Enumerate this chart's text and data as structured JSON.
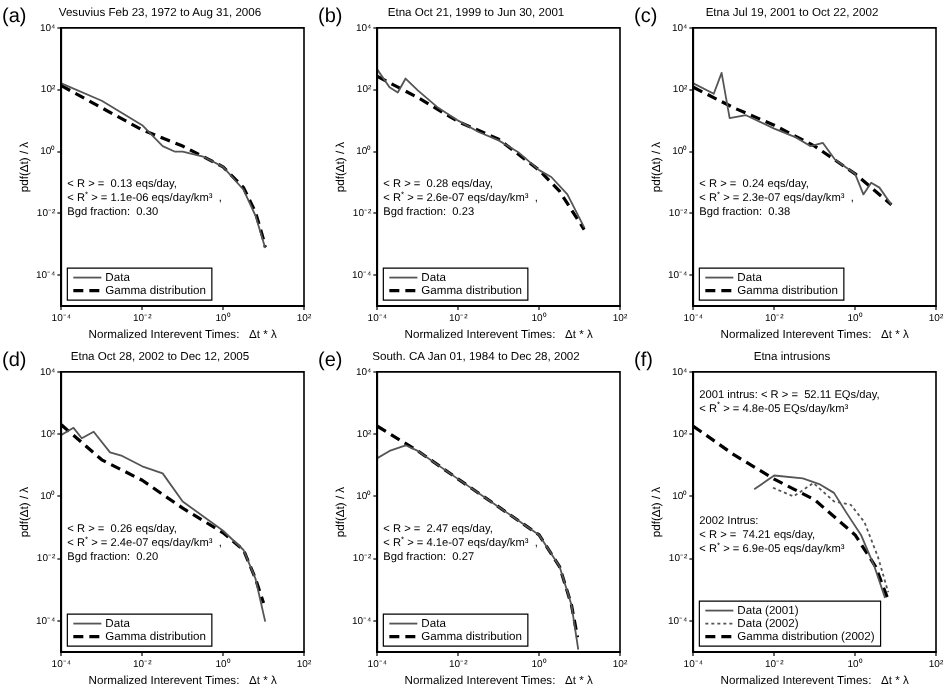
{
  "chart_data": [
    {
      "type": "line",
      "title": "Vesuvius Feb 23, 1972 to Aug 31, 2006",
      "xlabel": "Normalized Interevent Times:   Δt * λ",
      "ylabel": "pdf(Δt) / λ",
      "log": "xy",
      "legend": "bottom left",
      "xlim": [
        0.0001,
        100
      ],
      "xticks": [
        {
          "value": 0.0001,
          "label": "10⁻⁴"
        },
        {
          "value": 0.01,
          "label": "10⁻²"
        },
        {
          "value": 1,
          "label": "10⁰"
        },
        {
          "value": 100,
          "label": "10²"
        }
      ],
      "ylim": [
        1e-05,
        10000
      ],
      "yticks": [
        {
          "value": 0.0001,
          "label": "10⁻⁴"
        },
        {
          "value": 0.01,
          "label": "10⁻²"
        },
        {
          "value": 1,
          "label": "10⁰"
        },
        {
          "value": 100,
          "label": "10²"
        },
        {
          "value": 10000,
          "label": "10⁴"
        }
      ],
      "annotations": [
        "(a)",
        "< R > =  0.13 eqs/day,\n< R$^{*}$ > = 1.1e-06 eqs/day/km³  ,\nBgd fraction:  0.30"
      ],
      "series": [
        {
          "name": "Data",
          "color": "#555555",
          "line_style": "solid",
          "x": [
            0.0001,
            0.001,
            0.01,
            0.032,
            0.063,
            0.1,
            0.32,
            1,
            3.2,
            6.3,
            11
          ],
          "values": [
            160,
            44,
            7.1,
            1.5,
            1.0,
            1.0,
            0.69,
            0.32,
            0.058,
            0.0085,
            0.00076
          ]
        },
        {
          "name": "Gamma distribution",
          "color": "#000000",
          "line_style": "dashed",
          "x": [
            0.0001,
            0.001,
            0.01,
            0.1,
            1,
            3.2,
            6.3,
            10,
            11
          ],
          "values": [
            135,
            26,
            5,
            1.5,
            0.32,
            0.068,
            0.011,
            0.0014,
            0.0008
          ]
        }
      ]
    },
    {
      "type": "line",
      "title": "Etna Oct 21, 1999 to Jun 30, 2001",
      "xlabel": "Normalized Interevent Times:   Δt * λ",
      "ylabel": "pdf(Δt) / λ",
      "log": "xy",
      "legend": "bottom left",
      "xlim": [
        0.0001,
        100
      ],
      "xticks": [
        {
          "value": 0.0001,
          "label": "10⁻⁴"
        },
        {
          "value": 0.01,
          "label": "10⁻²"
        },
        {
          "value": 1,
          "label": "10⁰"
        },
        {
          "value": 100,
          "label": "10²"
        }
      ],
      "ylim": [
        1e-05,
        10000
      ],
      "yticks": [
        {
          "value": 0.0001,
          "label": "10⁻⁴"
        },
        {
          "value": 0.01,
          "label": "10⁻²"
        },
        {
          "value": 1,
          "label": "10⁰"
        },
        {
          "value": 100,
          "label": "10²"
        },
        {
          "value": 10000,
          "label": "10⁴"
        }
      ],
      "annotations": [
        "(b)",
        "< R > =  0.28 eqs/day,\n< R$^{*}$ > = 2.6e-07 eqs/day/km³  ,\nBgd fraction:  0.23"
      ],
      "series": [
        {
          "name": "Data",
          "color": "#555555",
          "line_style": "solid",
          "x": [
            0.0001,
            0.0002,
            0.00032,
            0.0005,
            0.001,
            0.0032,
            0.01,
            0.032,
            0.1,
            0.32,
            1,
            2,
            5,
            13
          ],
          "values": [
            450,
            120,
            81,
            230,
            95,
            26,
            10,
            4.3,
            2.3,
            0.91,
            0.25,
            0.15,
            0.041,
            0.0035
          ]
        },
        {
          "name": "Gamma distribution",
          "color": "#000000",
          "line_style": "dashed",
          "x": [
            0.0001,
            0.001,
            0.01,
            0.1,
            1,
            3.2,
            10,
            13
          ],
          "values": [
            270,
            56,
            9.3,
            2.5,
            0.25,
            0.052,
            0.0051,
            0.003
          ]
        }
      ]
    },
    {
      "type": "line",
      "title": "Etna Jul 19, 2001 to Oct 22, 2002",
      "xlabel": "Normalized Interevent Times:   Δt * λ",
      "ylabel": "pdf(Δt) / λ",
      "log": "xy",
      "legend": "bottom left",
      "xlim": [
        0.0001,
        100
      ],
      "xticks": [
        {
          "value": 0.0001,
          "label": "10⁻⁴"
        },
        {
          "value": 0.01,
          "label": "10⁻²"
        },
        {
          "value": 1,
          "label": "10⁰"
        },
        {
          "value": 100,
          "label": "10²"
        }
      ],
      "ylim": [
        1e-05,
        10000
      ],
      "yticks": [
        {
          "value": 0.0001,
          "label": "10⁻⁴"
        },
        {
          "value": 0.01,
          "label": "10⁻²"
        },
        {
          "value": 1,
          "label": "10⁰"
        },
        {
          "value": 100,
          "label": "10²"
        },
        {
          "value": 10000,
          "label": "10⁴"
        }
      ],
      "annotations": [
        "(c)",
        "< R > =  0.24 eqs/day,\n< R$^{*}$ > = 2.3e-07 eqs/day/km³  ,\nBgd fraction:  0.38"
      ],
      "series": [
        {
          "name": "Data",
          "color": "#555555",
          "line_style": "solid",
          "x": [
            0.0001,
            0.00032,
            0.0005,
            0.00079,
            0.002,
            0.01,
            0.032,
            0.079,
            0.16,
            0.32,
            1,
            1.6,
            2.5,
            4,
            7.9
          ],
          "values": [
            160,
            74,
            350,
            12,
            15,
            5.5,
            3.0,
            1.5,
            1.9,
            0.54,
            0.19,
            0.041,
            0.098,
            0.068,
            0.019
          ]
        },
        {
          "name": "Gamma distribution",
          "color": "#000000",
          "line_style": "dashed",
          "x": [
            0.0001,
            0.001,
            0.01,
            0.1,
            1,
            3.2,
            7.9
          ],
          "values": [
            120,
            26,
            7.1,
            1.5,
            0.19,
            0.052,
            0.019
          ]
        }
      ]
    },
    {
      "type": "line",
      "title": "Etna Oct 28, 2002 to Dec 12, 2005",
      "xlabel": "Normalized Interevent Times:   Δt * λ",
      "ylabel": "pdf(Δt) / λ",
      "log": "xy",
      "legend": "bottom left",
      "xlim": [
        0.0001,
        100
      ],
      "xticks": [
        {
          "value": 0.0001,
          "label": "10⁻⁴"
        },
        {
          "value": 0.01,
          "label": "10⁻²"
        },
        {
          "value": 1,
          "label": "10⁰"
        },
        {
          "value": 100,
          "label": "10²"
        }
      ],
      "ylim": [
        1e-05,
        10000
      ],
      "yticks": [
        {
          "value": 0.0001,
          "label": "10⁻⁴"
        },
        {
          "value": 0.01,
          "label": "10⁻²"
        },
        {
          "value": 1,
          "label": "10⁰"
        },
        {
          "value": 100,
          "label": "10²"
        },
        {
          "value": 10000,
          "label": "10⁴"
        }
      ],
      "annotations": [
        "(d)",
        "< R > =  0.26 eqs/day,\n< R$^{*}$ > = 2.4e-07 eqs/day/km³  ,\nBgd fraction:  0.20"
      ],
      "series": [
        {
          "name": "Data",
          "color": "#555555",
          "line_style": "solid",
          "x": [
            0.0001,
            0.0002,
            0.00032,
            0.00063,
            0.0016,
            0.0032,
            0.01,
            0.032,
            0.1,
            1,
            3.2,
            6.3,
            11
          ],
          "values": [
            95,
            160,
            74,
            120,
            26,
            20,
            9.3,
            5.5,
            0.69,
            0.079,
            0.019,
            0.0023,
            9.5e-05
          ]
        },
        {
          "name": "Gamma distribution",
          "color": "#000000",
          "line_style": "dashed",
          "x": [
            0.0001,
            0.001,
            0.01,
            0.1,
            1,
            3.2,
            6.3,
            10
          ],
          "values": [
            200,
            15,
            3.3,
            0.42,
            0.068,
            0.019,
            0.0023,
            0.00038
          ]
        }
      ]
    },
    {
      "type": "line",
      "title": "South. CA Jan 01, 1984 to Dec 28, 2002",
      "xlabel": "Normalized Interevent Times:   Δt * λ",
      "ylabel": "pdf(Δt) / λ",
      "log": "xy",
      "legend": "bottom left",
      "xlim": [
        0.0001,
        100
      ],
      "xticks": [
        {
          "value": 0.0001,
          "label": "10⁻⁴"
        },
        {
          "value": 0.01,
          "label": "10⁻²"
        },
        {
          "value": 1,
          "label": "10⁰"
        },
        {
          "value": 100,
          "label": "10²"
        }
      ],
      "ylim": [
        1e-05,
        10000
      ],
      "yticks": [
        {
          "value": 0.0001,
          "label": "10⁻⁴"
        },
        {
          "value": 0.01,
          "label": "10⁻²"
        },
        {
          "value": 1,
          "label": "10⁰"
        },
        {
          "value": 100,
          "label": "10²"
        },
        {
          "value": 10000,
          "label": "10⁴"
        }
      ],
      "annotations": [
        "(e)",
        "< R > =  2.47 eqs/day,\n< R$^{*}$ > = 4.1e-07 eqs/day/km³  ,\nBgd fraction:  0.27"
      ],
      "series": [
        {
          "name": "Data",
          "color": "#555555",
          "line_style": "solid",
          "x": [
            0.0001,
            0.0002,
            0.0005,
            0.001,
            0.01,
            0.1,
            1,
            3.2,
            6.3,
            9.3
          ],
          "values": [
            17,
            29,
            44,
            29,
            3.6,
            0.46,
            0.058,
            0.0056,
            0.00033,
            1.2e-05
          ]
        },
        {
          "name": "Gamma distribution",
          "color": "#000000",
          "line_style": "dashed",
          "x": [
            0.0001,
            0.001,
            0.01,
            0.1,
            1,
            3.2,
            6.3,
            8.9
          ],
          "values": [
            180,
            29,
            3.6,
            0.46,
            0.058,
            0.0056,
            0.00033,
            3e-05
          ]
        }
      ]
    },
    {
      "type": "line",
      "title": "Etna intrusions",
      "xlabel": "Normalized Interevent Times:   Δt * λ",
      "ylabel": "pdf(Δt) / λ",
      "log": "xy",
      "legend": "bottom left",
      "xlim": [
        0.0001,
        100
      ],
      "xticks": [
        {
          "value": 0.0001,
          "label": "10⁻⁴"
        },
        {
          "value": 0.01,
          "label": "10⁻²"
        },
        {
          "value": 1,
          "label": "10⁰"
        },
        {
          "value": 100,
          "label": "10²"
        }
      ],
      "ylim": [
        1e-05,
        10000
      ],
      "yticks": [
        {
          "value": 0.0001,
          "label": "10⁻⁴"
        },
        {
          "value": 0.01,
          "label": "10⁻²"
        },
        {
          "value": 1,
          "label": "10⁰"
        },
        {
          "value": 100,
          "label": "10²"
        },
        {
          "value": 10000,
          "label": "10⁴"
        }
      ],
      "annotations": [
        "(f)",
        "2001 intrus: < R > =  52.11 EQs/day,\n< R$^{*}$ > = 4.8e-05 EQs/day/km³",
        "2002 Intrus:\n< R > =  74.21 eqs/day,\n< R$^{*}$ > = 6.9e-05 eqs/day/km³"
      ],
      "series": [
        {
          "name": "Data (2001)",
          "color": "#555555",
          "line_style": "solid",
          "x": [
            0.0032,
            0.01,
            0.051,
            0.13,
            0.3,
            0.63,
            1.4,
            3.0,
            5.5
          ],
          "values": [
            1.7,
            4.7,
            3.8,
            2.5,
            1.3,
            0.28,
            0.058,
            0.0056,
            0.00055
          ]
        },
        {
          "name": "Data (2002)",
          "color": "#555555",
          "line_style": "dotted",
          "x": [
            0.0093,
            0.03,
            0.093,
            0.3,
            0.78,
            1.7,
            3.7,
            6.6
          ],
          "values": [
            1.9,
            1.0,
            2.7,
            0.69,
            0.54,
            0.15,
            0.011,
            0.00083
          ]
        },
        {
          "name": "Gamma distribution (2002)",
          "color": "#000000",
          "line_style": "dashed",
          "x": [
            0.0001,
            0.001,
            0.01,
            0.1,
            1,
            3.2,
            6.3
          ],
          "values": [
            180,
            22,
            3.6,
            0.78,
            0.058,
            0.0056,
            0.00055
          ]
        }
      ]
    }
  ]
}
